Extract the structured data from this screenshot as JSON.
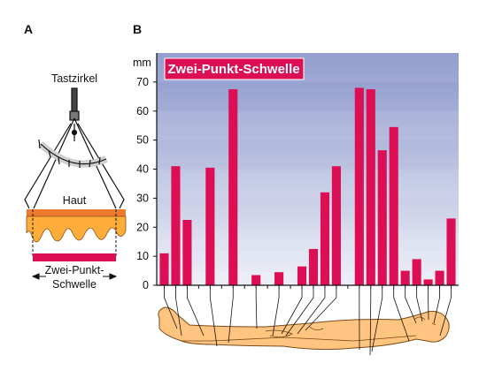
{
  "panel_a": {
    "letter": "A",
    "tool_label": "Tastzirkel",
    "skin_label": "Haut",
    "threshold_label_line1": "Zwei-Punkt-",
    "threshold_label_line2": "Schwelle"
  },
  "panel_b": {
    "letter": "B"
  },
  "colors": {
    "bar": "#dc0f55",
    "chart_bg_top": "#8a96ca",
    "chart_bg_bottom": "#eef0f8",
    "skin_top": "#ee7a2f",
    "skin_body": "#ffad3a",
    "threshold_bar": "#dc0f55",
    "body_fill": "#ffc480",
    "title_bg": "#dc0f55"
  },
  "chart_data": {
    "type": "bar",
    "title": "Zwei-Punkt-Schwelle",
    "ylabel": "mm",
    "ylim": [
      0,
      80
    ],
    "yticks": [
      0,
      10,
      20,
      30,
      40,
      50,
      60,
      70
    ],
    "grid": false,
    "values": [
      11,
      41,
      22.5,
      0,
      40.5,
      0,
      67.5,
      0,
      3.5,
      0,
      4.5,
      0,
      6.5,
      12.5,
      32,
      41,
      0,
      68,
      67.5,
      46.5,
      54.5,
      5,
      9,
      2,
      5,
      23
    ]
  }
}
